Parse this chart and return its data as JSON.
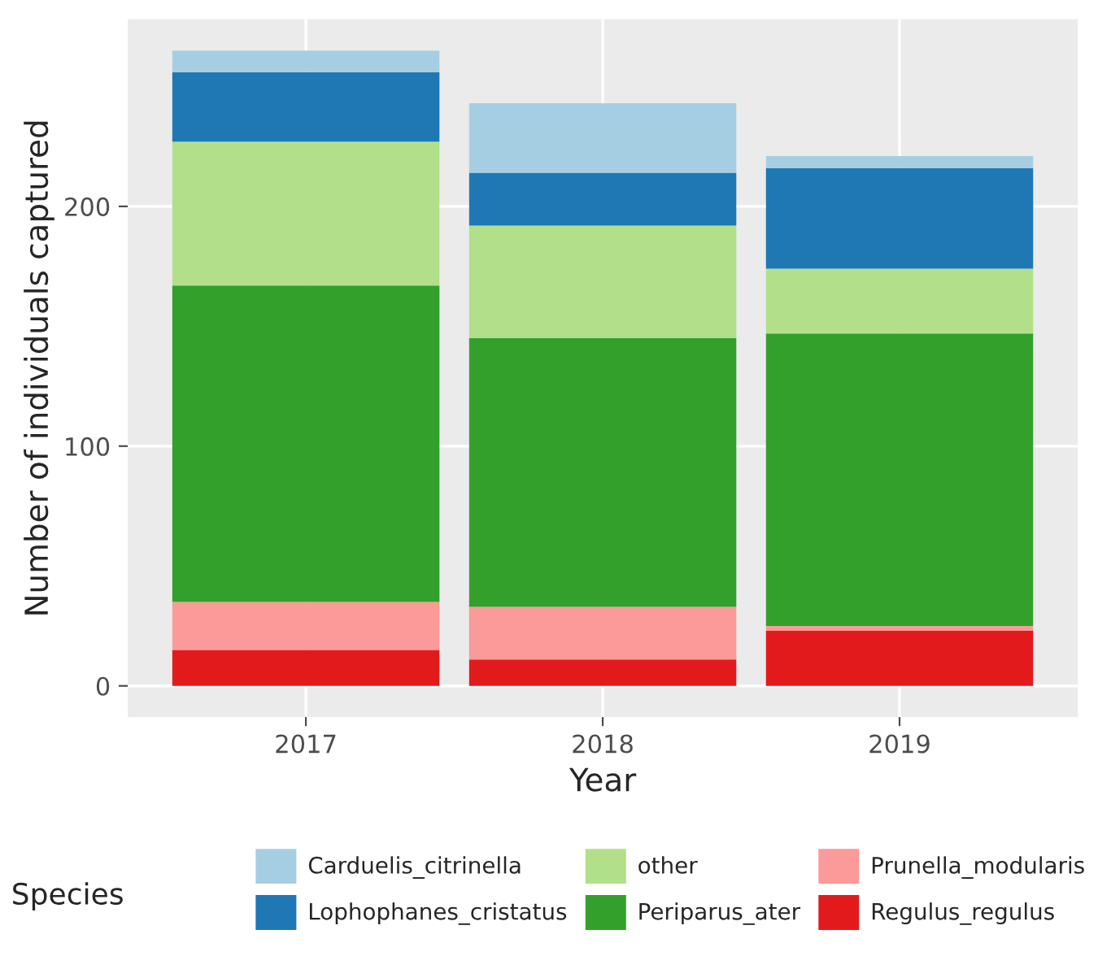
{
  "chart_data": {
    "type": "bar",
    "stacked": true,
    "xlabel": "Year",
    "ylabel": "Number of individuals captured",
    "legend_title": "Species",
    "legend": "bottom",
    "grid": true,
    "categories": [
      "2017",
      "2018",
      "2019"
    ],
    "ylim": [
      -13,
      278
    ],
    "yticks": [
      0,
      100,
      200
    ],
    "series": [
      {
        "name": "Regulus_regulus",
        "color": "#e31a1c",
        "values": [
          15,
          11,
          23
        ]
      },
      {
        "name": "Prunella_modularis",
        "color": "#fb9a99",
        "values": [
          20,
          22,
          2
        ]
      },
      {
        "name": "Periparus_ater",
        "color": "#33a02c",
        "values": [
          132,
          112,
          122
        ]
      },
      {
        "name": "other",
        "color": "#b2df8a",
        "values": [
          60,
          47,
          27
        ]
      },
      {
        "name": "Lophophanes_cristatus",
        "color": "#1f78b4",
        "values": [
          29,
          22,
          42
        ]
      },
      {
        "name": "Carduelis_citrinella",
        "color": "#a6cee3",
        "values": [
          9,
          29,
          5
        ]
      }
    ]
  }
}
